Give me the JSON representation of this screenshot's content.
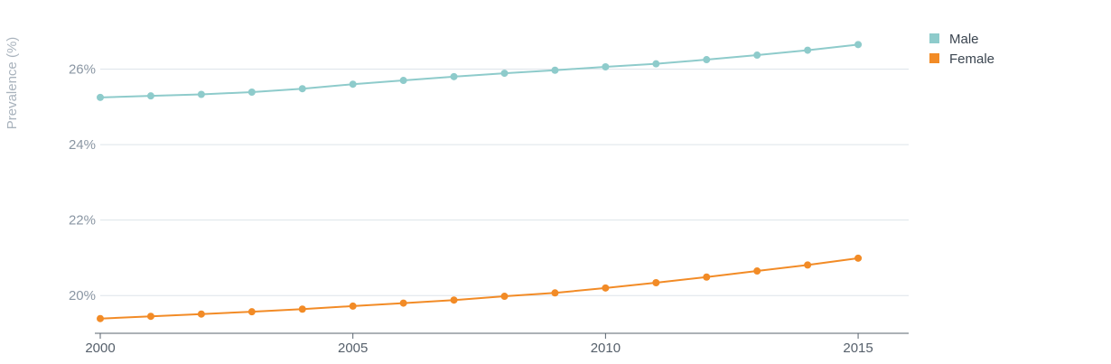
{
  "chart_data": {
    "type": "line",
    "title": "",
    "xlabel": "",
    "ylabel": "Prevalence (%)",
    "x": [
      2000,
      2001,
      2002,
      2003,
      2004,
      2005,
      2006,
      2007,
      2008,
      2009,
      2010,
      2011,
      2012,
      2013,
      2014,
      2015
    ],
    "xlim": [
      2000,
      2016
    ],
    "ylim": [
      19,
      27.4
    ],
    "x_ticks": [
      2000,
      2005,
      2010,
      2015
    ],
    "x_tick_labels": [
      "2000",
      "2005",
      "2010",
      "2015"
    ],
    "y_ticks": [
      20,
      22,
      24,
      26
    ],
    "y_tick_labels": [
      "20%",
      "22%",
      "24%",
      "26%"
    ],
    "grid": true,
    "legend_position": "top-right",
    "series": [
      {
        "name": "Male",
        "color": "#8ecbcb",
        "values": [
          25.25,
          25.29,
          25.33,
          25.39,
          25.48,
          25.6,
          25.7,
          25.8,
          25.89,
          25.97,
          26.06,
          26.14,
          26.25,
          26.37,
          26.5,
          26.65
        ]
      },
      {
        "name": "Female",
        "color": "#f28b26",
        "values": [
          19.39,
          19.45,
          19.51,
          19.57,
          19.64,
          19.72,
          19.8,
          19.88,
          19.98,
          20.07,
          20.2,
          20.34,
          20.49,
          20.65,
          20.81,
          20.99
        ]
      }
    ]
  }
}
